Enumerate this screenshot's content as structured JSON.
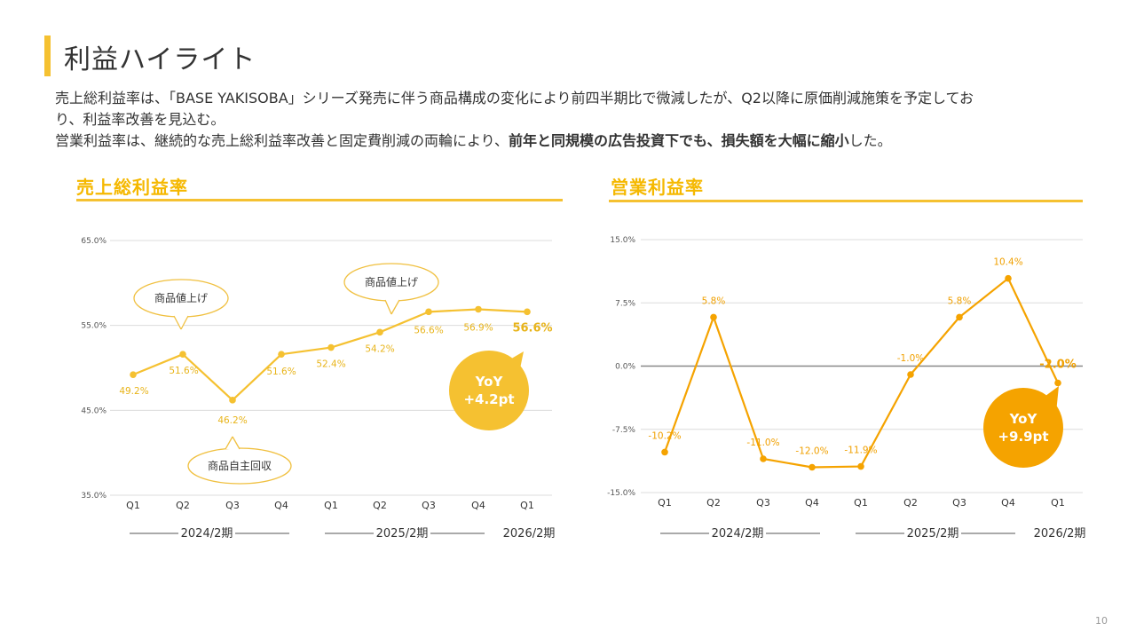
{
  "page": {
    "title": "利益ハイライト",
    "description_line1": "売上総利益率は、「BASE YAKISOBA」シリーズ発売に伴う商品構成の変化により前四半期比で微減したが、Q2以降に原価削減施策を予定してお",
    "description_line2": "り、利益率改善を見込む。",
    "description_line3_a": "営業利益率は、継続的な売上総利益率改善と固定費削減の両輪により、",
    "description_line3_b": "前年と同規模の広告投資下でも、損失額を大幅に縮小",
    "description_line3_c": "した。",
    "page_number": "10"
  },
  "colors": {
    "gross": "#f5c131",
    "operating": "#f5a300",
    "label_gross": "#e8b41a",
    "label_operating": "#f0a000"
  },
  "chart_data": [
    {
      "type": "line",
      "title": "売上総利益率",
      "categories": [
        "Q1",
        "Q2",
        "Q3",
        "Q4",
        "Q1",
        "Q2",
        "Q3",
        "Q4",
        "Q1"
      ],
      "values": [
        49.2,
        51.6,
        46.2,
        51.6,
        52.4,
        54.2,
        56.6,
        56.9,
        56.6
      ],
      "value_labels": [
        "49.2%",
        "51.6%",
        "46.2%",
        "51.6%",
        "52.4%",
        "54.2%",
        "56.6%",
        "56.9%",
        "56.6%"
      ],
      "yticks": [
        "65.0%",
        "55.0%",
        "45.0%",
        "35.0%"
      ],
      "ylim": [
        35,
        65
      ],
      "periods": [
        "2024/2期",
        "2025/2期",
        "2026/2期"
      ],
      "callouts": [
        "商品値上げ",
        "商品自主回収",
        "商品値上げ"
      ],
      "badge": {
        "line1": "YoY",
        "line2": "+4.2pt"
      },
      "grid": true
    },
    {
      "type": "line",
      "title": "営業利益率",
      "categories": [
        "Q1",
        "Q2",
        "Q3",
        "Q4",
        "Q1",
        "Q2",
        "Q3",
        "Q4",
        "Q1"
      ],
      "values": [
        -10.2,
        5.8,
        -11.0,
        -12.0,
        -11.9,
        -1.0,
        5.8,
        10.4,
        -2.0
      ],
      "value_labels": [
        "-10.2%",
        "5.8%",
        "-11.0%",
        "-12.0%",
        "-11.9%",
        "-1.0%",
        "5.8%",
        "10.4%",
        "-2.0%"
      ],
      "yticks": [
        "15.0%",
        "7.5%",
        "0.0%",
        "-7.5%",
        "-15.0%"
      ],
      "ylim": [
        -15,
        15
      ],
      "periods": [
        "2024/2期",
        "2025/2期",
        "2026/2期"
      ],
      "badge": {
        "line1": "YoY",
        "line2": "+9.9pt"
      },
      "grid": true
    }
  ]
}
